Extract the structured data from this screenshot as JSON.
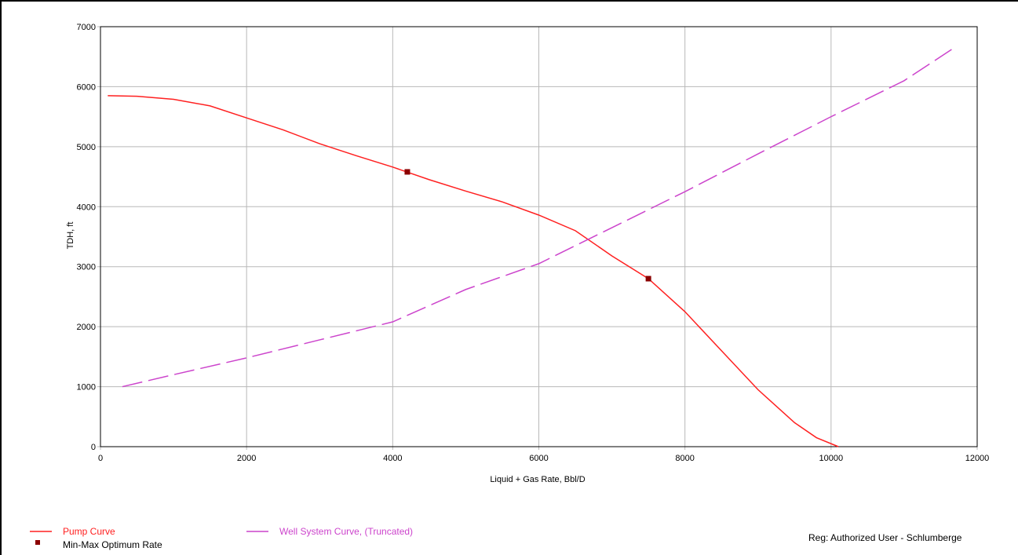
{
  "chart_data": {
    "type": "line",
    "xlabel": "Liquid + Gas Rate, Bbl/D",
    "ylabel": "TDH, ft",
    "xlim": [
      0,
      12000
    ],
    "ylim": [
      0,
      7000
    ],
    "x_ticks": [
      0,
      2000,
      4000,
      6000,
      8000,
      10000,
      12000
    ],
    "y_ticks": [
      0,
      1000,
      2000,
      3000,
      4000,
      5000,
      6000,
      7000
    ],
    "grid": true,
    "legend_position": "bottom",
    "series": [
      {
        "name": "Pump Curve",
        "color": "#ff2020",
        "style": "solid",
        "points": [
          [
            100,
            5850
          ],
          [
            500,
            5840
          ],
          [
            1000,
            5790
          ],
          [
            1500,
            5680
          ],
          [
            2000,
            5480
          ],
          [
            2500,
            5280
          ],
          [
            3000,
            5050
          ],
          [
            3500,
            4850
          ],
          [
            4000,
            4660
          ],
          [
            4500,
            4450
          ],
          [
            5000,
            4260
          ],
          [
            5500,
            4080
          ],
          [
            6000,
            3860
          ],
          [
            6500,
            3600
          ],
          [
            7000,
            3180
          ],
          [
            7500,
            2800
          ],
          [
            8000,
            2250
          ],
          [
            8500,
            1600
          ],
          [
            9000,
            950
          ],
          [
            9500,
            400
          ],
          [
            9800,
            150
          ],
          [
            10100,
            0
          ]
        ]
      },
      {
        "name": "Well System Curve, (Truncated)",
        "color": "#cc44cc",
        "style": "dashed",
        "points": [
          [
            300,
            1000
          ],
          [
            1000,
            1200
          ],
          [
            2000,
            1480
          ],
          [
            3000,
            1780
          ],
          [
            4000,
            2080
          ],
          [
            4500,
            2350
          ],
          [
            5000,
            2620
          ],
          [
            6000,
            3050
          ],
          [
            7000,
            3650
          ],
          [
            8000,
            4250
          ],
          [
            9000,
            4880
          ],
          [
            10000,
            5500
          ],
          [
            11000,
            6100
          ],
          [
            11650,
            6620
          ]
        ]
      },
      {
        "name": "Min-Max Optimum Rate",
        "color": "#8b0000",
        "style": "marker",
        "points": [
          [
            4200,
            4580
          ],
          [
            7500,
            2800
          ]
        ]
      }
    ]
  },
  "legend": {
    "pump_curve": "Pump Curve",
    "optimum_rate": "Min-Max Optimum Rate",
    "well_system": "Well System Curve, (Truncated)"
  },
  "footer": {
    "reg_text": "Reg: Authorized User - Schlumberge"
  }
}
